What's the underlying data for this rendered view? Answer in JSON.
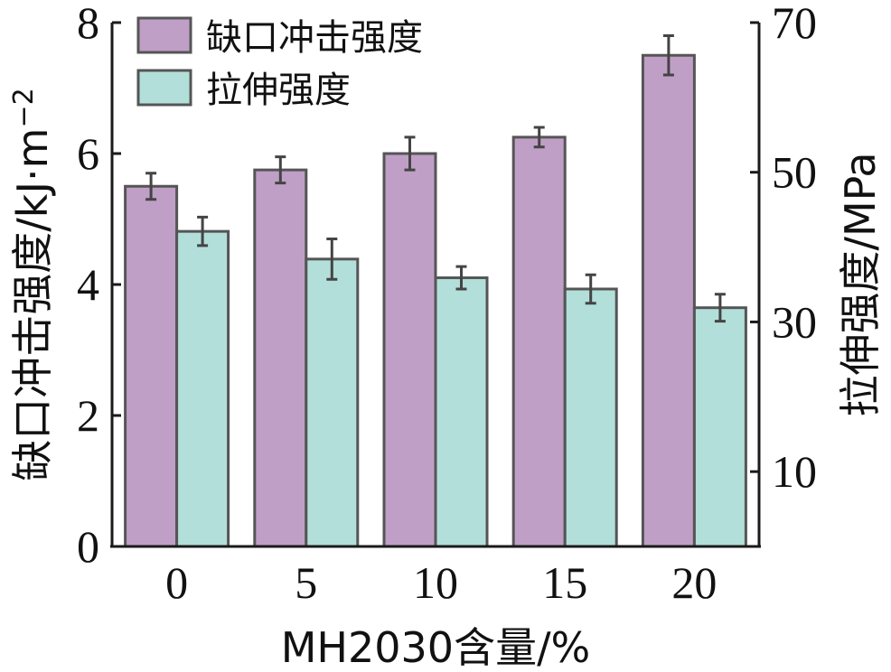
{
  "chart_data": {
    "type": "bar",
    "categories": [
      "0",
      "5",
      "10",
      "15",
      "20"
    ],
    "xlabel": "MH2030含量/%",
    "ylabel": "缺口冲击强度/kJ·m",
    "ylabel_sup": "−2",
    "y2label": "拉伸强度/MPa",
    "ylim": [
      0,
      8
    ],
    "y2lim": [
      0,
      70
    ],
    "yticks": [
      "0",
      "2",
      "4",
      "6",
      "8"
    ],
    "y2ticks": [
      "10",
      "30",
      "50",
      "70"
    ],
    "y2tick_values": [
      10,
      30,
      50,
      70
    ],
    "legend_position": "top-left",
    "series": [
      {
        "name": "缺口冲击强度",
        "axis": "left",
        "color": "#c09fc7",
        "values": [
          5.5,
          5.75,
          6.0,
          6.25,
          7.5
        ],
        "errors": [
          0.2,
          0.2,
          0.25,
          0.15,
          0.3
        ]
      },
      {
        "name": "拉伸强度",
        "axis": "right",
        "color": "#b3dfda",
        "values": [
          42.1,
          38.4,
          35.9,
          34.4,
          31.9
        ],
        "errors": [
          1.9,
          2.7,
          1.5,
          1.9,
          1.8
        ]
      }
    ]
  }
}
